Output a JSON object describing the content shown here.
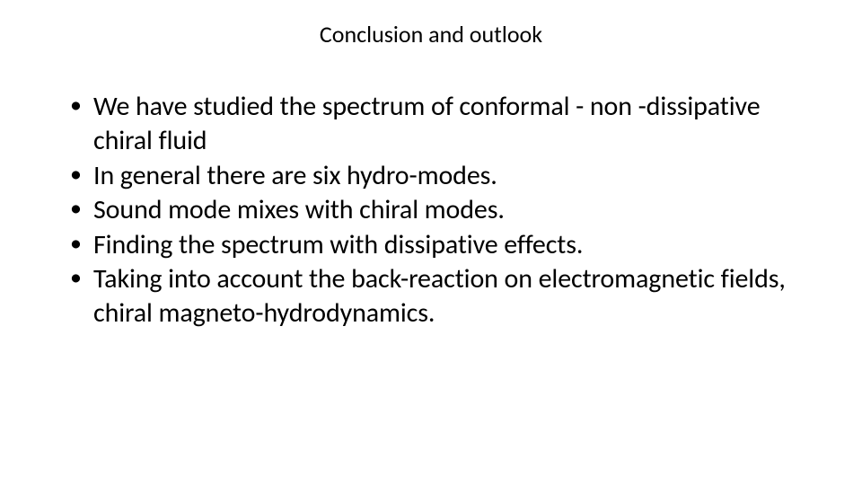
{
  "slide": {
    "title": "Conclusion and outlook",
    "bullets": [
      "We have studied the spectrum of conformal -  non -dissipative chiral fluid",
      "In general there are six hydro-modes.",
      "Sound mode mixes with chiral modes.",
      "Finding the spectrum with dissipative effects.",
      "Taking into account the back-reaction on electromagnetic fields, chiral magneto-hydrodynamics."
    ],
    "styling": {
      "background_color": "#ffffff",
      "text_color": "#000000",
      "font_family": "Calibri",
      "title_fontsize": 26,
      "title_weight": 400,
      "bullet_fontsize": 30,
      "bullet_line_height": 1.28,
      "slide_width": 960,
      "slide_height": 540
    }
  }
}
